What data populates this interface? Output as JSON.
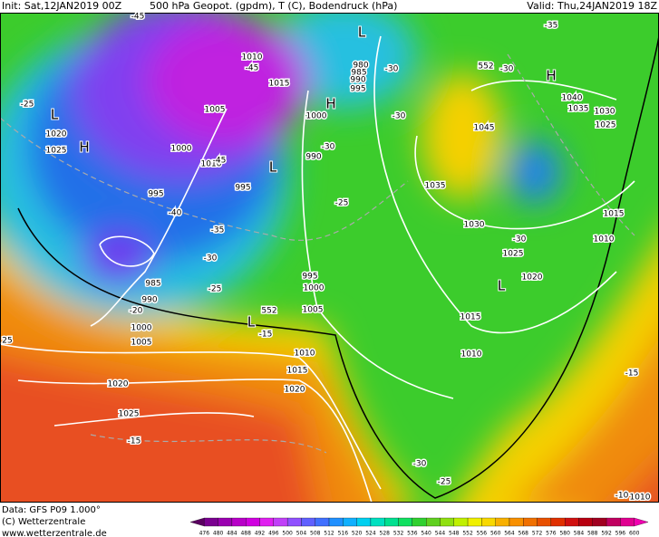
{
  "header": {
    "init": "Init: Sat,12JAN2019 00Z",
    "title": "500 hPa Geopot. (gpdm), T (C), Bodendruck (hPa)",
    "valid": "Valid: Thu,24JAN2019 18Z"
  },
  "footer": {
    "data": "Data: GFS P09 1.000°",
    "copyright": "(C) Wetterzentrale",
    "url": "www.wetterzentrale.de"
  },
  "colorbar": {
    "labels": [
      476,
      480,
      484,
      488,
      492,
      496,
      500,
      504,
      508,
      512,
      516,
      520,
      524,
      528,
      532,
      536,
      540,
      544,
      548,
      552,
      556,
      560,
      564,
      568,
      572,
      576,
      580,
      584,
      588,
      592,
      596,
      600
    ]
  },
  "map": {
    "pressure_centers": [
      "L",
      "H",
      "L",
      "H",
      "L",
      "L",
      "H",
      "L"
    ],
    "isobar_labels": [
      1010,
      1015,
      1005,
      1000,
      1010,
      995,
      995,
      990,
      1000,
      985,
      990,
      1000,
      1005,
      995,
      1000,
      1005,
      1010,
      1015,
      1020,
      1020,
      1025,
      1020,
      1025,
      1045,
      1035,
      1030,
      1025,
      1020,
      1015,
      1010,
      1040,
      1035,
      1030,
      1025,
      1015,
      1010,
      980,
      985,
      990,
      995,
      1010
    ],
    "temperature_labels": [
      -45,
      -45,
      -45,
      -30,
      -25,
      -30,
      -25,
      -40,
      -35,
      -30,
      -25,
      -20,
      -15,
      -30,
      -30,
      -35,
      -30,
      -30,
      -25,
      -15,
      -15,
      -10,
      25
    ],
    "height_labels": [
      552,
      552
    ]
  }
}
